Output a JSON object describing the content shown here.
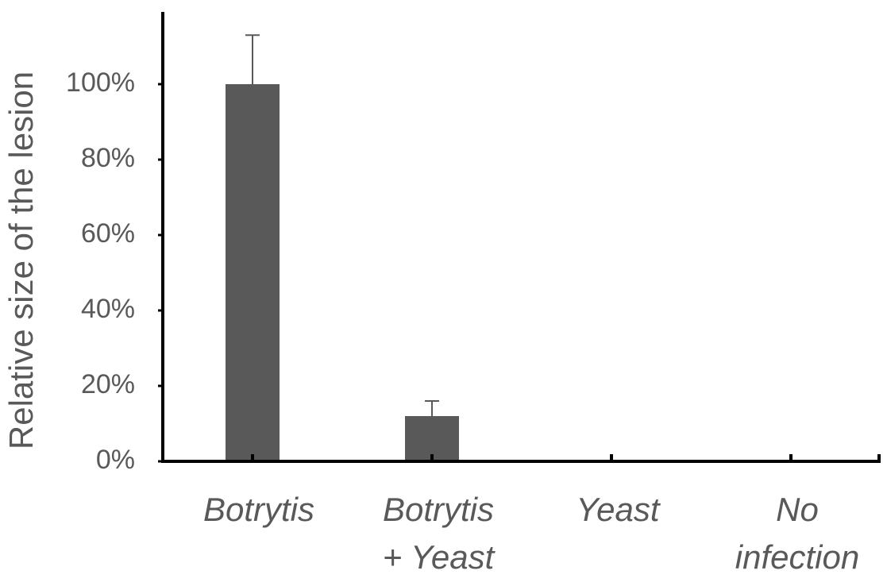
{
  "chart_data": {
    "type": "bar",
    "y_label": "Relative size of the lesion",
    "categories": [
      [
        "Botrytis"
      ],
      [
        "Botrytis",
        "+  Yeast"
      ],
      [
        "Yeast"
      ],
      [
        "No",
        "infection"
      ]
    ],
    "values": [
      100,
      12,
      0,
      0
    ],
    "errors": [
      13,
      4,
      null,
      null
    ],
    "color": "#595959",
    "ylim": [
      0,
      120
    ],
    "yticks": [
      {
        "value": 0,
        "label": "0%"
      },
      {
        "value": 20,
        "label": "20%"
      },
      {
        "value": 40,
        "label": "40%"
      },
      {
        "value": 60,
        "label": "60%"
      },
      {
        "value": 80,
        "label": "80%"
      },
      {
        "value": 100,
        "label": "100%"
      }
    ],
    "grid": false
  }
}
